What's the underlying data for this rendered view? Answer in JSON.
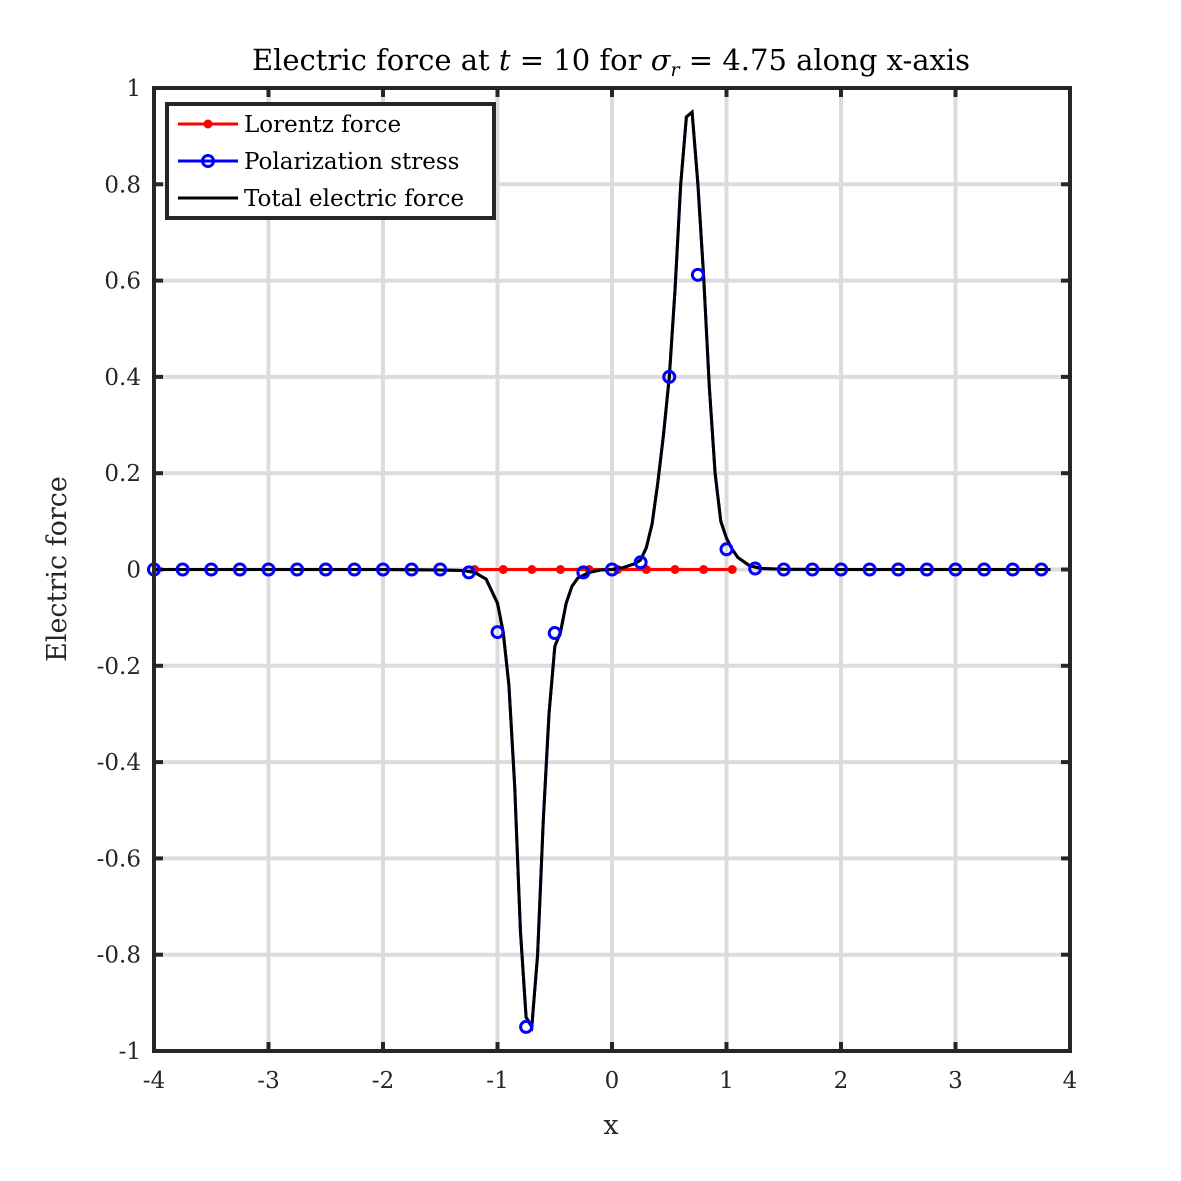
{
  "chart_data": {
    "type": "line",
    "title": {
      "prefix": "Electric force at ",
      "t_symbol": "t",
      "eq1": " = 10 for ",
      "sigma_symbol": "σ",
      "sigma_sub": "r",
      "eq2": " = 4.75 along x-axis"
    },
    "xlabel": "x",
    "ylabel": "Electric force",
    "xlim": [
      -4,
      4
    ],
    "ylim": [
      -1,
      1
    ],
    "xticks": [
      -4,
      -3,
      -2,
      -1,
      0,
      1,
      2,
      3,
      4
    ],
    "xtick_labels": [
      "-4",
      "-3",
      "-2",
      "-1",
      "0",
      "1",
      "2",
      "3",
      "4"
    ],
    "yticks": [
      -1,
      -0.8,
      -0.6,
      -0.4,
      -0.2,
      0,
      0.2,
      0.4,
      0.6,
      0.8,
      1
    ],
    "ytick_labels": [
      "-1",
      "-0.8",
      "-0.6",
      "-0.4",
      "-0.2",
      "0",
      "0.2",
      "0.4",
      "0.6",
      "0.8",
      "1"
    ],
    "grid": true,
    "legend_position": "top-left",
    "series": [
      {
        "name": "Lorentz force",
        "color": "#ff0000",
        "marker": "dot",
        "x": [
          -1.2,
          -0.95,
          -0.7,
          -0.45,
          -0.2,
          0.05,
          0.3,
          0.55,
          0.8,
          1.05
        ],
        "y": [
          0,
          0,
          0,
          0,
          0,
          0,
          0,
          0,
          0,
          0
        ]
      },
      {
        "name": "Polarization stress",
        "color": "#0000ff",
        "marker": "circle",
        "x": [
          -4.0,
          -3.75,
          -3.5,
          -3.25,
          -3.0,
          -2.75,
          -2.5,
          -2.25,
          -2.0,
          -1.75,
          -1.5,
          -1.25,
          -1.0,
          -0.75,
          -0.5,
          -0.25,
          0.0,
          0.25,
          0.5,
          0.75,
          1.0,
          1.25,
          1.5,
          1.75,
          2.0,
          2.25,
          2.5,
          2.75,
          3.0,
          3.25,
          3.5,
          3.75
        ],
        "y": [
          0,
          0,
          0,
          0,
          0,
          0,
          0,
          0,
          0,
          0,
          0,
          -0.006,
          -0.13,
          -0.95,
          -0.132,
          -0.006,
          0.0,
          0.015,
          0.4,
          0.612,
          0.042,
          0.002,
          0,
          0,
          0,
          0,
          0,
          0,
          0,
          0,
          0,
          0
        ]
      },
      {
        "name": "Total electric force",
        "color": "#000000",
        "marker": "none",
        "x": [
          -4.0,
          -2.0,
          -1.5,
          -1.3,
          -1.2,
          -1.1,
          -1.0,
          -0.95,
          -0.9,
          -0.85,
          -0.8,
          -0.75,
          -0.7,
          -0.65,
          -0.6,
          -0.55,
          -0.5,
          -0.45,
          -0.4,
          -0.35,
          -0.3,
          -0.2,
          -0.1,
          0.0,
          0.1,
          0.2,
          0.25,
          0.3,
          0.35,
          0.4,
          0.45,
          0.5,
          0.55,
          0.6,
          0.65,
          0.7,
          0.75,
          0.8,
          0.85,
          0.9,
          0.95,
          1.0,
          1.05,
          1.1,
          1.2,
          1.3,
          1.5,
          2.0,
          3.83
        ],
        "y": [
          0,
          0,
          -0.001,
          -0.002,
          -0.006,
          -0.02,
          -0.07,
          -0.13,
          -0.24,
          -0.45,
          -0.75,
          -0.93,
          -0.95,
          -0.8,
          -0.52,
          -0.3,
          -0.16,
          -0.13,
          -0.07,
          -0.035,
          -0.018,
          -0.006,
          -0.001,
          0.0,
          0.004,
          0.012,
          0.02,
          0.045,
          0.095,
          0.18,
          0.28,
          0.4,
          0.58,
          0.8,
          0.94,
          0.95,
          0.8,
          0.61,
          0.38,
          0.2,
          0.1,
          0.065,
          0.042,
          0.025,
          0.008,
          0.002,
          0.0005,
          0,
          0
        ]
      }
    ]
  }
}
